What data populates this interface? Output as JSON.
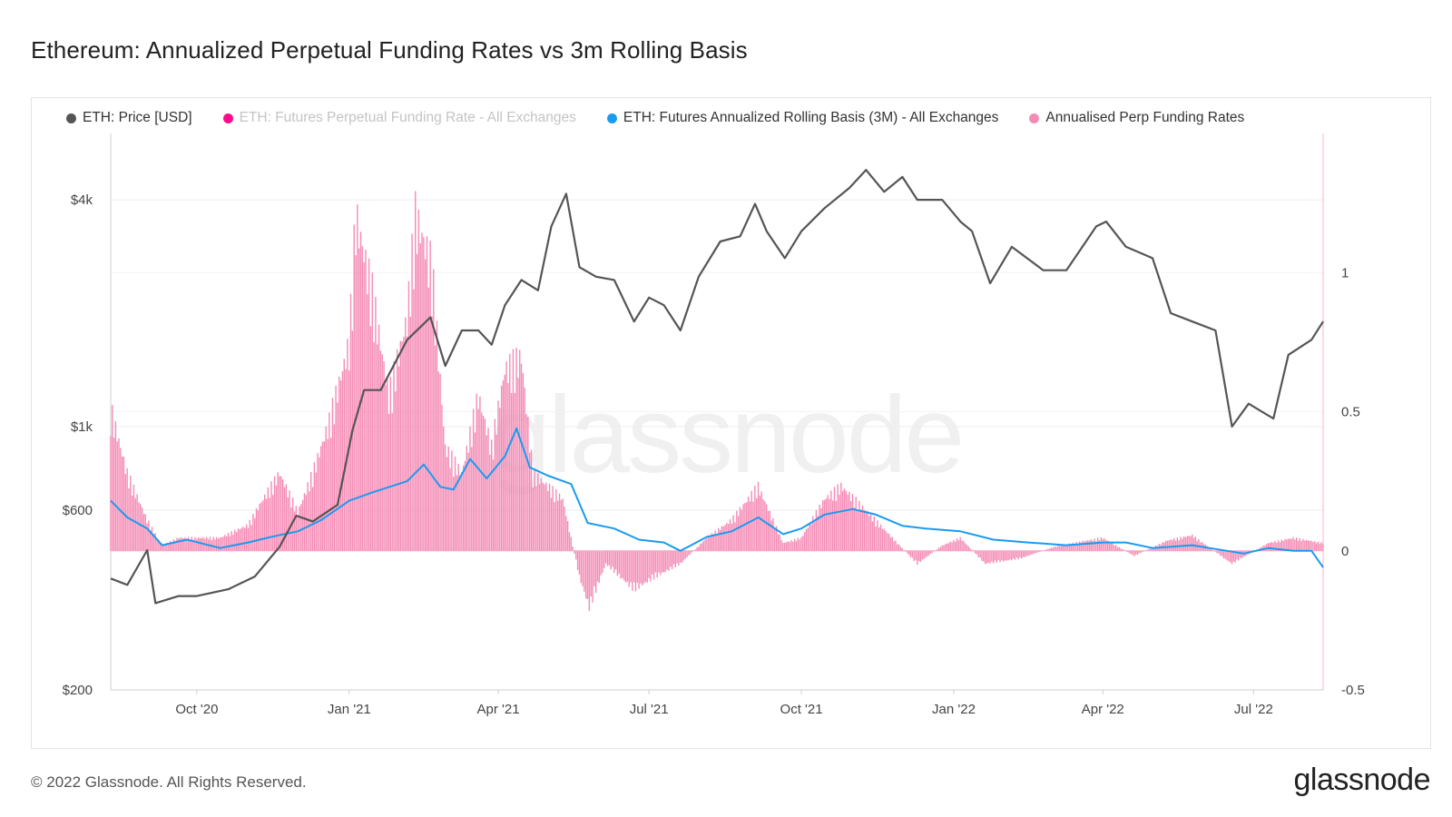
{
  "header": {
    "title": "Ethereum: Annualized Perpetual Funding Rates vs 3m Rolling Basis"
  },
  "footer": {
    "copyright": "© 2022 Glassnode. All Rights Reserved.",
    "logo": "glassnode"
  },
  "watermark": "glassnode",
  "colors": {
    "price": "#555555",
    "funding_muted": "#ff0a8c",
    "basis": "#1a9bef",
    "perp": "#f48bb5",
    "right_axis": "#f7b3cf"
  },
  "chart_data": {
    "type": "line",
    "title": "Ethereum: Annualized Perpetual Funding Rates vs 3m Rolling Basis",
    "legend": [
      {
        "name": "ETH: Price [USD]",
        "color": "#555555",
        "muted": false
      },
      {
        "name": "ETH: Futures Perpetual Funding Rate - All Exchanges",
        "color": "#ff0a8c",
        "muted": true
      },
      {
        "name": "ETH: Futures Annualized Rolling Basis (3M) - All Exchanges",
        "color": "#1a9bef",
        "muted": false
      },
      {
        "name": "Annualised Perp Funding Rates",
        "color": "#f48bb5",
        "muted": false
      }
    ],
    "legend_position": "top",
    "x_range": [
      "2020-08-10",
      "2022-08-12"
    ],
    "x_ticks": [
      {
        "label": "Oct '20",
        "date": "2020-10-01"
      },
      {
        "label": "Jan '21",
        "date": "2021-01-01"
      },
      {
        "label": "Apr '21",
        "date": "2021-04-01"
      },
      {
        "label": "Jul '21",
        "date": "2021-07-01"
      },
      {
        "label": "Oct '21",
        "date": "2021-10-01"
      },
      {
        "label": "Jan '22",
        "date": "2022-01-01"
      },
      {
        "label": "Apr '22",
        "date": "2022-04-01"
      },
      {
        "label": "Jul '22",
        "date": "2022-07-01"
      }
    ],
    "y_left": {
      "scale": "log",
      "ylim": [
        200,
        6000
      ],
      "ticks": [
        {
          "label": "$200",
          "value": 200
        },
        {
          "label": "$600",
          "value": 600
        },
        {
          "label": "$1k",
          "value": 1000
        },
        {
          "label": "$4k",
          "value": 4000
        }
      ]
    },
    "y_right": {
      "scale": "linear",
      "ylim": [
        -0.5,
        1.5
      ],
      "ticks": [
        {
          "label": "-0.5",
          "value": -0.5
        },
        {
          "label": "0",
          "value": 0
        },
        {
          "label": "0.5",
          "value": 0.5
        },
        {
          "label": "1",
          "value": 1
        }
      ]
    },
    "grid": true,
    "series": [
      {
        "name": "ETH: Price [USD]",
        "axis": "left",
        "points": [
          [
            "2020-08-10",
            395
          ],
          [
            "2020-08-20",
            380
          ],
          [
            "2020-09-01",
            470
          ],
          [
            "2020-09-06",
            340
          ],
          [
            "2020-09-20",
            355
          ],
          [
            "2020-10-01",
            355
          ],
          [
            "2020-10-20",
            370
          ],
          [
            "2020-11-05",
            400
          ],
          [
            "2020-11-20",
            480
          ],
          [
            "2020-11-30",
            580
          ],
          [
            "2020-12-10",
            560
          ],
          [
            "2020-12-25",
            620
          ],
          [
            "2021-01-03",
            980
          ],
          [
            "2021-01-10",
            1250
          ],
          [
            "2021-01-20",
            1250
          ],
          [
            "2021-02-05",
            1700
          ],
          [
            "2021-02-19",
            1950
          ],
          [
            "2021-02-28",
            1450
          ],
          [
            "2021-03-10",
            1800
          ],
          [
            "2021-03-20",
            1800
          ],
          [
            "2021-03-28",
            1650
          ],
          [
            "2021-04-05",
            2100
          ],
          [
            "2021-04-15",
            2450
          ],
          [
            "2021-04-25",
            2300
          ],
          [
            "2021-05-03",
            3400
          ],
          [
            "2021-05-12",
            4150
          ],
          [
            "2021-05-20",
            2650
          ],
          [
            "2021-05-30",
            2500
          ],
          [
            "2021-06-10",
            2450
          ],
          [
            "2021-06-22",
            1900
          ],
          [
            "2021-07-01",
            2200
          ],
          [
            "2021-07-10",
            2100
          ],
          [
            "2021-07-20",
            1800
          ],
          [
            "2021-07-31",
            2500
          ],
          [
            "2021-08-13",
            3100
          ],
          [
            "2021-08-25",
            3200
          ],
          [
            "2021-09-03",
            3900
          ],
          [
            "2021-09-10",
            3300
          ],
          [
            "2021-09-21",
            2800
          ],
          [
            "2021-10-01",
            3300
          ],
          [
            "2021-10-15",
            3800
          ],
          [
            "2021-10-30",
            4300
          ],
          [
            "2021-11-09",
            4800
          ],
          [
            "2021-11-20",
            4200
          ],
          [
            "2021-12-01",
            4600
          ],
          [
            "2021-12-10",
            4000
          ],
          [
            "2021-12-25",
            4000
          ],
          [
            "2022-01-05",
            3500
          ],
          [
            "2022-01-12",
            3300
          ],
          [
            "2022-01-23",
            2400
          ],
          [
            "2022-02-05",
            3000
          ],
          [
            "2022-02-24",
            2600
          ],
          [
            "2022-03-10",
            2600
          ],
          [
            "2022-03-28",
            3400
          ],
          [
            "2022-04-03",
            3500
          ],
          [
            "2022-04-15",
            3000
          ],
          [
            "2022-05-01",
            2800
          ],
          [
            "2022-05-12",
            2000
          ],
          [
            "2022-05-25",
            1900
          ],
          [
            "2022-06-08",
            1800
          ],
          [
            "2022-06-18",
            1000
          ],
          [
            "2022-06-28",
            1150
          ],
          [
            "2022-07-13",
            1050
          ],
          [
            "2022-07-22",
            1550
          ],
          [
            "2022-08-05",
            1700
          ],
          [
            "2022-08-12",
            1900
          ]
        ]
      },
      {
        "name": "ETH: Futures Annualized Rolling Basis (3M) - All Exchanges",
        "axis": "right",
        "points": [
          [
            "2020-08-10",
            0.18
          ],
          [
            "2020-08-20",
            0.12
          ],
          [
            "2020-09-01",
            0.08
          ],
          [
            "2020-09-10",
            0.02
          ],
          [
            "2020-09-25",
            0.04
          ],
          [
            "2020-10-15",
            0.01
          ],
          [
            "2020-11-01",
            0.03
          ],
          [
            "2020-11-15",
            0.05
          ],
          [
            "2020-12-01",
            0.07
          ],
          [
            "2020-12-15",
            0.11
          ],
          [
            "2021-01-01",
            0.18
          ],
          [
            "2021-01-15",
            0.21
          ],
          [
            "2021-02-05",
            0.25
          ],
          [
            "2021-02-15",
            0.31
          ],
          [
            "2021-02-25",
            0.23
          ],
          [
            "2021-03-05",
            0.22
          ],
          [
            "2021-03-15",
            0.33
          ],
          [
            "2021-03-25",
            0.26
          ],
          [
            "2021-04-05",
            0.34
          ],
          [
            "2021-04-12",
            0.44
          ],
          [
            "2021-04-20",
            0.3
          ],
          [
            "2021-05-01",
            0.27
          ],
          [
            "2021-05-15",
            0.24
          ],
          [
            "2021-05-25",
            0.1
          ],
          [
            "2021-06-10",
            0.08
          ],
          [
            "2021-06-25",
            0.04
          ],
          [
            "2021-07-10",
            0.03
          ],
          [
            "2021-07-20",
            0.0
          ],
          [
            "2021-08-05",
            0.05
          ],
          [
            "2021-08-20",
            0.07
          ],
          [
            "2021-09-05",
            0.12
          ],
          [
            "2021-09-20",
            0.06
          ],
          [
            "2021-10-01",
            0.08
          ],
          [
            "2021-10-15",
            0.13
          ],
          [
            "2021-11-01",
            0.15
          ],
          [
            "2021-11-15",
            0.13
          ],
          [
            "2021-12-01",
            0.09
          ],
          [
            "2021-12-15",
            0.08
          ],
          [
            "2022-01-05",
            0.07
          ],
          [
            "2022-01-25",
            0.04
          ],
          [
            "2022-02-15",
            0.03
          ],
          [
            "2022-03-10",
            0.02
          ],
          [
            "2022-04-01",
            0.03
          ],
          [
            "2022-04-15",
            0.03
          ],
          [
            "2022-05-01",
            0.01
          ],
          [
            "2022-05-25",
            0.02
          ],
          [
            "2022-06-15",
            0.0
          ],
          [
            "2022-06-25",
            -0.01
          ],
          [
            "2022-07-10",
            0.01
          ],
          [
            "2022-07-25",
            0.0
          ],
          [
            "2022-08-05",
            0.0
          ],
          [
            "2022-08-12",
            -0.06
          ]
        ]
      },
      {
        "name": "Annualised Perp Funding Rates",
        "axis": "right",
        "type": "bar",
        "points": [
          [
            "2020-08-10",
            0.55
          ],
          [
            "2020-08-20",
            0.3
          ],
          [
            "2020-09-01",
            0.12
          ],
          [
            "2020-09-10",
            0.02
          ],
          [
            "2020-09-20",
            0.05
          ],
          [
            "2020-10-01",
            0.05
          ],
          [
            "2020-10-15",
            0.05
          ],
          [
            "2020-11-01",
            0.1
          ],
          [
            "2020-11-10",
            0.2
          ],
          [
            "2020-11-20",
            0.3
          ],
          [
            "2020-12-01",
            0.15
          ],
          [
            "2020-12-10",
            0.3
          ],
          [
            "2020-12-20",
            0.5
          ],
          [
            "2021-01-01",
            0.8
          ],
          [
            "2021-01-05",
            1.3
          ],
          [
            "2021-01-15",
            1.0
          ],
          [
            "2021-01-25",
            0.6
          ],
          [
            "2021-02-05",
            0.9
          ],
          [
            "2021-02-10",
            1.3
          ],
          [
            "2021-02-20",
            1.1
          ],
          [
            "2021-02-28",
            0.4
          ],
          [
            "2021-03-10",
            0.3
          ],
          [
            "2021-03-20",
            0.6
          ],
          [
            "2021-03-28",
            0.4
          ],
          [
            "2021-04-05",
            0.7
          ],
          [
            "2021-04-15",
            0.75
          ],
          [
            "2021-04-22",
            0.3
          ],
          [
            "2021-05-01",
            0.25
          ],
          [
            "2021-05-10",
            0.2
          ],
          [
            "2021-05-20",
            -0.1
          ],
          [
            "2021-05-26",
            -0.22
          ],
          [
            "2021-06-05",
            -0.05
          ],
          [
            "2021-06-22",
            -0.15
          ],
          [
            "2021-07-05",
            -0.1
          ],
          [
            "2021-07-20",
            -0.05
          ],
          [
            "2021-08-05",
            0.05
          ],
          [
            "2021-08-20",
            0.12
          ],
          [
            "2021-09-05",
            0.25
          ],
          [
            "2021-09-20",
            0.03
          ],
          [
            "2021-10-01",
            0.05
          ],
          [
            "2021-10-15",
            0.2
          ],
          [
            "2021-10-25",
            0.25
          ],
          [
            "2021-11-10",
            0.15
          ],
          [
            "2021-11-25",
            0.05
          ],
          [
            "2021-12-10",
            -0.05
          ],
          [
            "2021-12-25",
            0.02
          ],
          [
            "2022-01-05",
            0.05
          ],
          [
            "2022-01-20",
            -0.05
          ],
          [
            "2022-02-10",
            -0.03
          ],
          [
            "2022-03-05",
            0.02
          ],
          [
            "2022-04-01",
            0.05
          ],
          [
            "2022-04-20",
            -0.02
          ],
          [
            "2022-05-10",
            0.04
          ],
          [
            "2022-05-25",
            0.06
          ],
          [
            "2022-06-18",
            -0.05
          ],
          [
            "2022-07-10",
            0.03
          ],
          [
            "2022-07-25",
            0.05
          ],
          [
            "2022-08-12",
            0.03
          ]
        ]
      }
    ]
  }
}
